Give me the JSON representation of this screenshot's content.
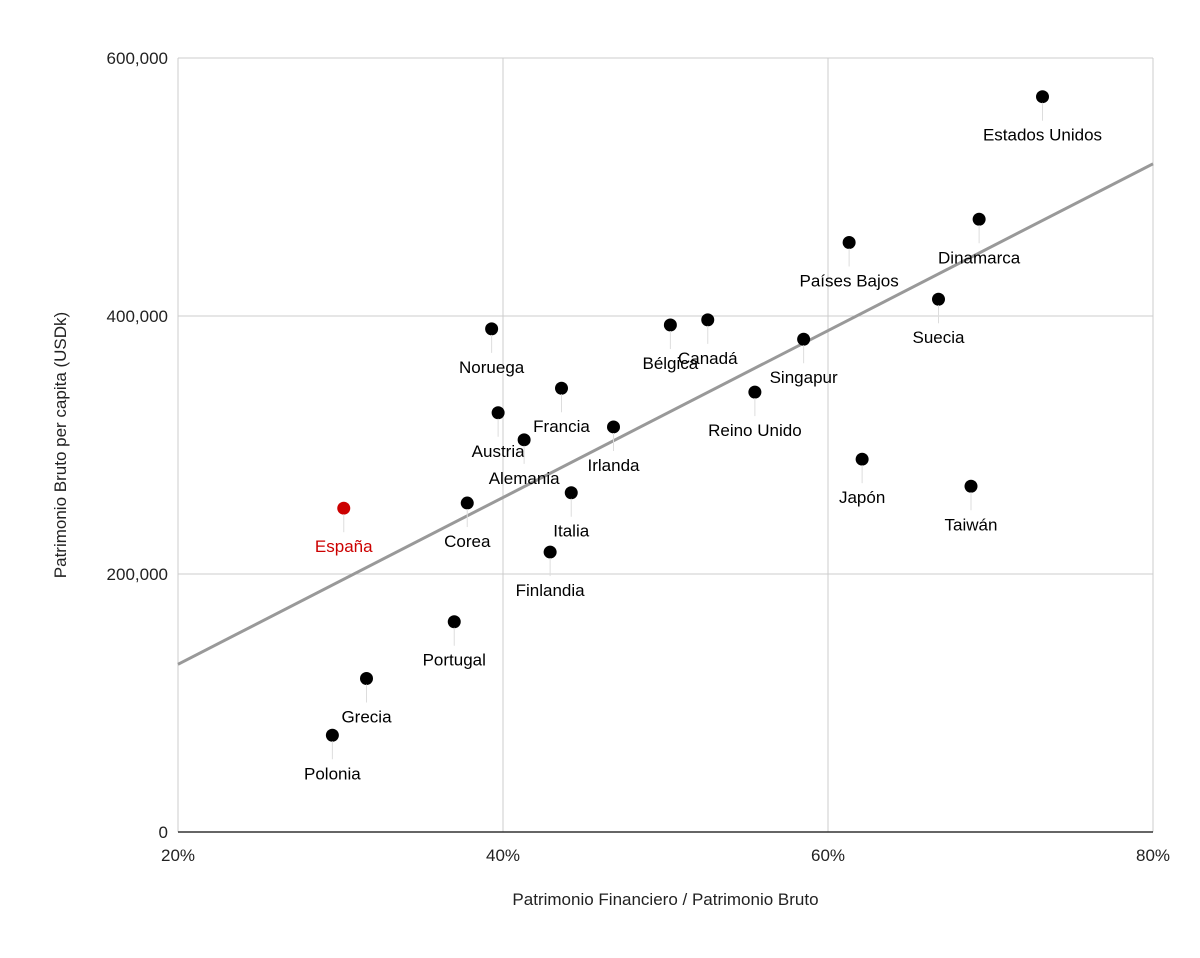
{
  "colors": {
    "point": "#000000",
    "highlight": "#cc0000",
    "trendline": "#999999",
    "grid": "#cccccc",
    "axis": "#333333",
    "leader": "#dddddd"
  },
  "chart_data": {
    "type": "scatter",
    "title": "",
    "xlabel": "Patrimonio Financiero / Patrimonio Bruto",
    "ylabel": "Patrimonio Bruto per capita (USDk)",
    "xlim": [
      0.2,
      0.8
    ],
    "ylim": [
      0,
      600000
    ],
    "x_ticks": [
      {
        "value": 0.2,
        "label": "20%"
      },
      {
        "value": 0.4,
        "label": "40%"
      },
      {
        "value": 0.6,
        "label": "60%"
      },
      {
        "value": 0.8,
        "label": "80%"
      }
    ],
    "y_ticks": [
      {
        "value": 0,
        "label": "0"
      },
      {
        "value": 200000,
        "label": "200,000"
      },
      {
        "value": 400000,
        "label": "400,000"
      },
      {
        "value": 600000,
        "label": "600,000"
      }
    ],
    "grid": true,
    "legend": "none",
    "points": [
      {
        "label": "Estados Unidos",
        "x": 0.732,
        "y": 570000
      },
      {
        "label": "Dinamarca",
        "x": 0.693,
        "y": 475000
      },
      {
        "label": "Países Bajos",
        "x": 0.613,
        "y": 457000
      },
      {
        "label": "Suecia",
        "x": 0.668,
        "y": 413000
      },
      {
        "label": "Noruega",
        "x": 0.393,
        "y": 390000
      },
      {
        "label": "Bélgica",
        "x": 0.503,
        "y": 393000
      },
      {
        "label": "Canadá",
        "x": 0.526,
        "y": 397000
      },
      {
        "label": "Singapur",
        "x": 0.585,
        "y": 382000
      },
      {
        "label": "Reino Unido",
        "x": 0.555,
        "y": 341000
      },
      {
        "label": "Francia",
        "x": 0.436,
        "y": 344000
      },
      {
        "label": "Austria",
        "x": 0.397,
        "y": 325000
      },
      {
        "label": "Irlanda",
        "x": 0.468,
        "y": 314000
      },
      {
        "label": "Alemania",
        "x": 0.413,
        "y": 304000
      },
      {
        "label": "Japón",
        "x": 0.621,
        "y": 289000
      },
      {
        "label": "Taiwán",
        "x": 0.688,
        "y": 268000
      },
      {
        "label": "Italia",
        "x": 0.442,
        "y": 263000
      },
      {
        "label": "Corea",
        "x": 0.378,
        "y": 255000
      },
      {
        "label": "España",
        "x": 0.302,
        "y": 251000,
        "highlight": true
      },
      {
        "label": "Finlandia",
        "x": 0.429,
        "y": 217000
      },
      {
        "label": "Portugal",
        "x": 0.37,
        "y": 163000
      },
      {
        "label": "Grecia",
        "x": 0.316,
        "y": 119000
      },
      {
        "label": "Polonia",
        "x": 0.295,
        "y": 75000
      }
    ],
    "trendline": {
      "x": [
        0.2,
        0.8
      ],
      "y": [
        130000,
        518000
      ]
    }
  }
}
